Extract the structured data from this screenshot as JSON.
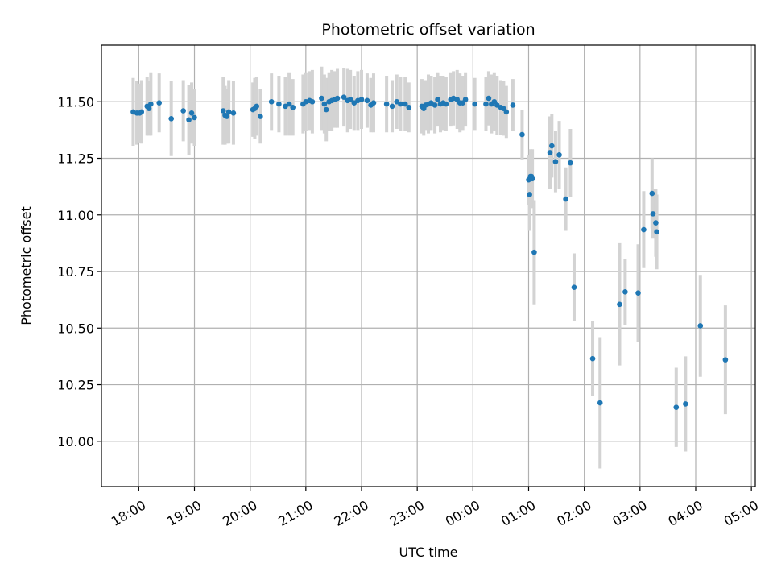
{
  "chart_data": {
    "type": "scatter",
    "title": "Photometric offset variation",
    "xlabel": "UTC time",
    "ylabel": "Photometric offset",
    "x_tick_labels": [
      "18:00",
      "19:00",
      "20:00",
      "21:00",
      "22:00",
      "23:00",
      "00:00",
      "01:00",
      "02:00",
      "03:00",
      "04:00",
      "05:00"
    ],
    "y_tick_labels": [
      "10.00",
      "10.25",
      "10.50",
      "10.75",
      "11.00",
      "11.25",
      "11.50"
    ],
    "y_ticks": [
      10.0,
      10.25,
      10.5,
      10.75,
      11.0,
      11.25,
      11.5
    ],
    "xlim_hours": [
      17.33,
      29.07
    ],
    "ylim": [
      9.8,
      11.75
    ],
    "grid": true,
    "colors": {
      "points": "#1f77b4",
      "errorbars": "#d3d3d3",
      "grid": "#b0b0b0"
    },
    "series": [
      {
        "points": [
          [
            "17:54",
            11.455,
            0.15
          ],
          [
            "17:58",
            11.45,
            0.14
          ],
          [
            "18:01",
            11.45,
            0.13
          ],
          [
            "18:03",
            11.455,
            0.14
          ],
          [
            "18:09",
            11.48,
            0.13
          ],
          [
            "18:11",
            11.47,
            0.12
          ],
          [
            "18:13",
            11.49,
            0.14
          ],
          [
            "18:22",
            11.495,
            0.13
          ],
          [
            "18:35",
            11.425,
            0.165
          ],
          [
            "18:48",
            11.46,
            0.135
          ],
          [
            "18:54",
            11.42,
            0.155
          ],
          [
            "18:57",
            11.45,
            0.135
          ],
          [
            "19:00",
            11.43,
            0.125
          ],
          [
            "19:31",
            11.46,
            0.15
          ],
          [
            "19:33",
            11.44,
            0.13
          ],
          [
            "19:35",
            11.435,
            0.12
          ],
          [
            "19:37",
            11.455,
            0.14
          ],
          [
            "19:42",
            11.45,
            0.14
          ],
          [
            "20:03",
            11.465,
            0.12
          ],
          [
            "20:05",
            11.47,
            0.135
          ],
          [
            "20:07",
            11.48,
            0.13
          ],
          [
            "20:11",
            11.435,
            0.12
          ],
          [
            "20:23",
            11.5,
            0.125
          ],
          [
            "20:31",
            11.49,
            0.125
          ],
          [
            "20:38",
            11.48,
            0.13
          ],
          [
            "20:42",
            11.49,
            0.14
          ],
          [
            "20:46",
            11.475,
            0.125
          ],
          [
            "20:57",
            11.49,
            0.13
          ],
          [
            "21:00",
            11.5,
            0.13
          ],
          [
            "21:04",
            11.505,
            0.13
          ],
          [
            "21:07",
            11.5,
            0.14
          ],
          [
            "21:17",
            11.515,
            0.14
          ],
          [
            "21:20",
            11.49,
            0.13
          ],
          [
            "21:22",
            11.465,
            0.14
          ],
          [
            "21:25",
            11.5,
            0.13
          ],
          [
            "21:28",
            11.505,
            0.135
          ],
          [
            "21:31",
            11.51,
            0.125
          ],
          [
            "21:34",
            11.515,
            0.13
          ],
          [
            "21:41",
            11.52,
            0.13
          ],
          [
            "21:45",
            11.505,
            0.14
          ],
          [
            "21:48",
            11.51,
            0.13
          ],
          [
            "21:52",
            11.495,
            0.12
          ],
          [
            "21:56",
            11.505,
            0.13
          ],
          [
            "22:00",
            11.51,
            0.13
          ],
          [
            "22:06",
            11.505,
            0.12
          ],
          [
            "22:10",
            11.485,
            0.12
          ],
          [
            "22:13",
            11.495,
            0.13
          ],
          [
            "22:27",
            11.49,
            0.125
          ],
          [
            "22:33",
            11.48,
            0.115
          ],
          [
            "22:38",
            11.5,
            0.12
          ],
          [
            "22:42",
            11.49,
            0.12
          ],
          [
            "22:47",
            11.49,
            0.12
          ],
          [
            "22:51",
            11.475,
            0.11
          ],
          [
            "23:05",
            11.48,
            0.12
          ],
          [
            "23:07",
            11.47,
            0.12
          ],
          [
            "23:09",
            11.485,
            0.11
          ],
          [
            "23:12",
            11.49,
            0.13
          ],
          [
            "23:15",
            11.495,
            0.12
          ],
          [
            "23:19",
            11.485,
            0.125
          ],
          [
            "23:22",
            11.51,
            0.12
          ],
          [
            "23:25",
            11.49,
            0.125
          ],
          [
            "23:28",
            11.495,
            0.12
          ],
          [
            "23:31",
            11.49,
            0.12
          ],
          [
            "23:36",
            11.51,
            0.12
          ],
          [
            "23:39",
            11.515,
            0.12
          ],
          [
            "23:43",
            11.51,
            0.13
          ],
          [
            "23:46",
            11.495,
            0.13
          ],
          [
            "23:49",
            11.495,
            0.12
          ],
          [
            "23:52",
            11.51,
            0.12
          ],
          [
            "00:02",
            11.49,
            0.115
          ],
          [
            "00:14",
            11.49,
            0.12
          ],
          [
            "00:17",
            11.515,
            0.12
          ],
          [
            "00:20",
            11.49,
            0.13
          ],
          [
            "00:23",
            11.5,
            0.13
          ],
          [
            "00:26",
            11.485,
            0.13
          ],
          [
            "00:30",
            11.475,
            0.12
          ],
          [
            "00:33",
            11.47,
            0.12
          ],
          [
            "00:36",
            11.455,
            0.115
          ],
          [
            "00:43",
            11.485,
            0.115
          ],
          [
            "00:53",
            11.355,
            0.11
          ],
          [
            "01:00",
            11.155,
            0.11
          ],
          [
            "01:01",
            11.09,
            0.16
          ],
          [
            "01:02",
            11.17,
            0.12
          ],
          [
            "01:03",
            11.17,
            0.115
          ],
          [
            "01:04",
            11.16,
            0.13
          ],
          [
            "01:06",
            10.835,
            0.23
          ],
          [
            "01:23",
            11.275,
            0.16
          ],
          [
            "01:25",
            11.305,
            0.14
          ],
          [
            "01:29",
            11.235,
            0.135
          ],
          [
            "01:33",
            11.265,
            0.15
          ],
          [
            "01:40",
            11.07,
            0.14
          ],
          [
            "01:45",
            11.23,
            0.15
          ],
          [
            "01:49",
            10.68,
            0.15
          ],
          [
            "02:09",
            10.365,
            0.165
          ],
          [
            "02:17",
            10.17,
            0.29
          ],
          [
            "02:38",
            10.605,
            0.27
          ],
          [
            "02:44",
            10.66,
            0.145
          ],
          [
            "02:58",
            10.655,
            0.215
          ],
          [
            "03:04",
            10.935,
            0.17
          ],
          [
            "03:13",
            11.095,
            0.155
          ],
          [
            "03:14",
            11.005,
            0.11
          ],
          [
            "03:17",
            10.965,
            0.15
          ],
          [
            "03:18",
            10.925,
            0.165
          ],
          [
            "03:39",
            10.15,
            0.175
          ],
          [
            "03:49",
            10.165,
            0.21
          ],
          [
            "04:05",
            10.51,
            0.225
          ],
          [
            "04:32",
            10.36,
            0.24
          ]
        ]
      }
    ]
  }
}
